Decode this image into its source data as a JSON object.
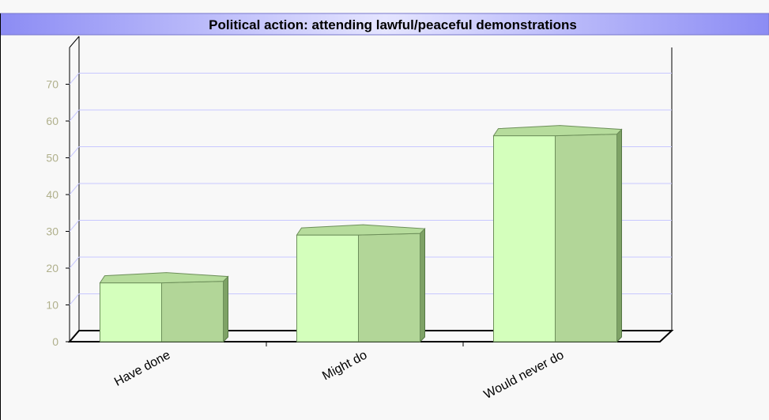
{
  "chart_data": {
    "type": "bar",
    "title": "Political action: attending lawful/peaceful demonstrations",
    "categories": [
      "Have done",
      "Might do",
      "Would never do"
    ],
    "values": [
      16,
      29,
      56
    ],
    "color": "#d4ffbc",
    "ylim": [
      0,
      80
    ],
    "yticks": [
      0,
      10,
      20,
      30,
      40,
      50,
      60,
      70
    ],
    "grid": true
  }
}
